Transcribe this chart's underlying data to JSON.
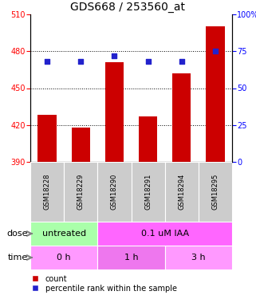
{
  "title": "GDS668 / 253560_at",
  "samples": [
    "GSM18228",
    "GSM18229",
    "GSM18290",
    "GSM18291",
    "GSM18294",
    "GSM18295"
  ],
  "bar_values": [
    428,
    418,
    471,
    427,
    462,
    500
  ],
  "percentile_values": [
    68,
    68,
    72,
    68,
    68,
    75
  ],
  "bar_color": "#cc0000",
  "percentile_color": "#2222cc",
  "ylim_left": [
    390,
    510
  ],
  "ylim_right": [
    0,
    100
  ],
  "yticks_left": [
    390,
    420,
    450,
    480,
    510
  ],
  "yticks_right": [
    0,
    25,
    50,
    75,
    100
  ],
  "grid_lines": [
    420,
    450,
    480
  ],
  "dose_labels": [
    {
      "label": "untreated",
      "span": [
        0,
        2
      ],
      "color": "#aaffaa"
    },
    {
      "label": "0.1 uM IAA",
      "span": [
        2,
        6
      ],
      "color": "#ff66ff"
    }
  ],
  "time_labels": [
    {
      "label": "0 h",
      "span": [
        0,
        2
      ],
      "color": "#ff99ff"
    },
    {
      "label": "1 h",
      "span": [
        2,
        4
      ],
      "color": "#ee77ee"
    },
    {
      "label": "3 h",
      "span": [
        4,
        6
      ],
      "color": "#ff99ff"
    }
  ],
  "xlabel_dose": "dose",
  "xlabel_time": "time",
  "legend_count": "count",
  "legend_percentile": "percentile rank within the sample",
  "title_fontsize": 10,
  "tick_fontsize": 7,
  "sample_fontsize": 6,
  "label_fontsize": 8,
  "bar_bottom": 390,
  "sample_box_color": "#cccccc"
}
